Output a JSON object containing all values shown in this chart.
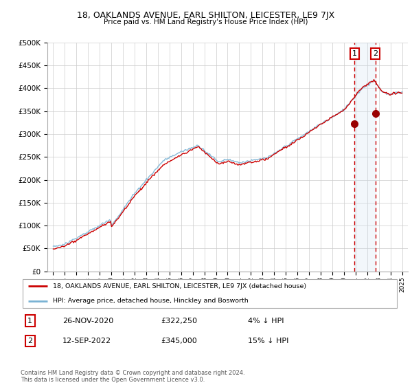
{
  "title": "18, OAKLANDS AVENUE, EARL SHILTON, LEICESTER, LE9 7JX",
  "subtitle": "Price paid vs. HM Land Registry's House Price Index (HPI)",
  "legend_label_red": "18, OAKLANDS AVENUE, EARL SHILTON, LEICESTER, LE9 7JX (detached house)",
  "legend_label_blue": "HPI: Average price, detached house, Hinckley and Bosworth",
  "transaction1_date": "26-NOV-2020",
  "transaction1_price": "£322,250",
  "transaction1_note": "4% ↓ HPI",
  "transaction2_date": "12-SEP-2022",
  "transaction2_price": "£345,000",
  "transaction2_note": "15% ↓ HPI",
  "footer": "Contains HM Land Registry data © Crown copyright and database right 2024.\nThis data is licensed under the Open Government Licence v3.0.",
  "hpi_color": "#7ab3d4",
  "price_color": "#cc0000",
  "vline_color": "#cc0000",
  "span_color": "#cce0f0",
  "background_color": "#ffffff",
  "grid_color": "#cccccc",
  "ylim": [
    0,
    500000
  ],
  "yticks": [
    0,
    50000,
    100000,
    150000,
    200000,
    250000,
    300000,
    350000,
    400000,
    450000,
    500000
  ],
  "marker1_x": 2020.92,
  "marker1_y": 322250,
  "marker2_x": 2022.7,
  "marker2_y": 345000,
  "xmin": 1994.5,
  "xmax": 2025.5
}
